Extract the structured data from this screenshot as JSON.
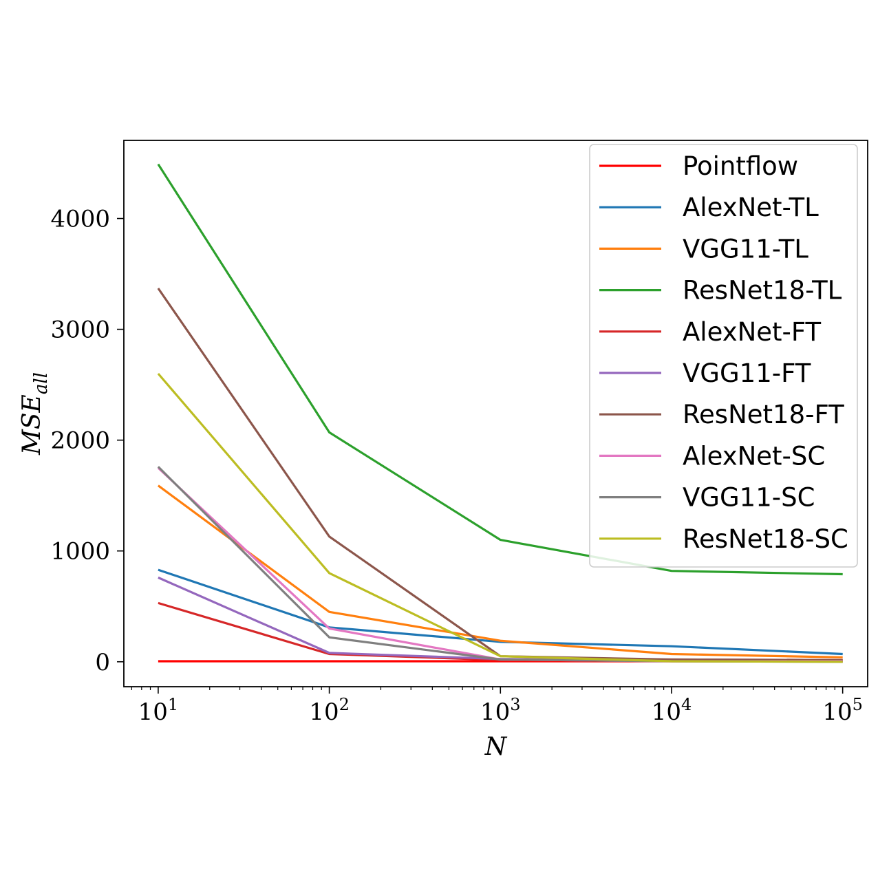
{
  "chart_data": {
    "type": "line",
    "xlabel": "N",
    "ylabel": "MSE",
    "ylabel_sub": "all",
    "x_scale": "log",
    "x": [
      10,
      100,
      1000,
      10000,
      100000
    ],
    "x_tick_labels": [
      {
        "base": "10",
        "exp": "1"
      },
      {
        "base": "10",
        "exp": "2"
      },
      {
        "base": "10",
        "exp": "3"
      },
      {
        "base": "10",
        "exp": "4"
      },
      {
        "base": "10",
        "exp": "5"
      }
    ],
    "y_ticks": [
      0,
      1000,
      2000,
      3000,
      4000
    ],
    "xlim": [
      6.3,
      140000
    ],
    "ylim": [
      -225,
      4705
    ],
    "grid": false,
    "legend_position": "top-right",
    "series": [
      {
        "name": "Pointflow",
        "color": "#ff0000",
        "values": [
          5,
          5,
          5,
          5,
          5
        ]
      },
      {
        "name": "AlexNet-TL",
        "color": "#1f77b4",
        "values": [
          830,
          310,
          180,
          140,
          70
        ]
      },
      {
        "name": "VGG11-TL",
        "color": "#ff7f0e",
        "values": [
          1590,
          450,
          190,
          70,
          40
        ]
      },
      {
        "name": "ResNet18-TL",
        "color": "#2ca02c",
        "values": [
          4490,
          2070,
          1100,
          820,
          790
        ]
      },
      {
        "name": "AlexNet-FT",
        "color": "#d62728",
        "values": [
          530,
          70,
          15,
          20,
          15
        ]
      },
      {
        "name": "VGG11-FT",
        "color": "#9467bd",
        "values": [
          760,
          80,
          25,
          10,
          5
        ]
      },
      {
        "name": "ResNet18-FT",
        "color": "#8c564b",
        "values": [
          3370,
          1130,
          50,
          20,
          15
        ]
      },
      {
        "name": "AlexNet-SC",
        "color": "#e377c2",
        "values": [
          1750,
          300,
          20,
          5,
          5
        ]
      },
      {
        "name": "VGG11-SC",
        "color": "#7f7f7f",
        "values": [
          1760,
          220,
          20,
          5,
          0
        ]
      },
      {
        "name": "ResNet18-SC",
        "color": "#bcbd22",
        "values": [
          2600,
          800,
          50,
          5,
          0
        ]
      }
    ]
  }
}
